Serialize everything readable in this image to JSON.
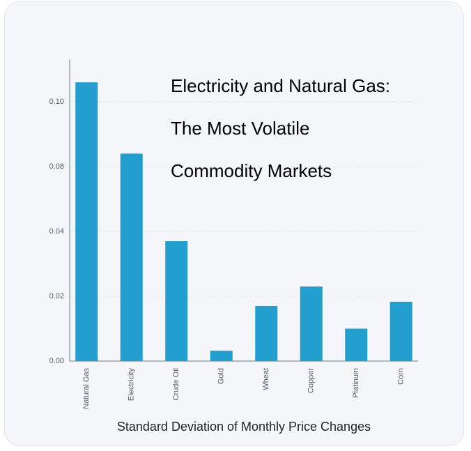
{
  "chart_data": {
    "type": "bar",
    "title": [
      "Electricity and Natural Gas:",
      "The Most Volatile",
      "Commodity Markets"
    ],
    "x_label": "Standard Deviation of Monthly Price Changes",
    "categories": [
      "Natural Gas",
      "Electricity",
      "Crude Oil",
      "Gold",
      "Wheat",
      "Copper",
      "Platinum",
      "Corn"
    ],
    "values": [
      0.106,
      0.084,
      0.037,
      0.0032,
      0.017,
      0.023,
      0.01,
      0.0183
    ],
    "color": "#229fcf",
    "ylim": [
      0,
      0.113
    ],
    "yticks": [
      {
        "value": 0,
        "label": "0.00"
      },
      {
        "value": 0.02,
        "label": "0.02"
      },
      {
        "value": 0.04,
        "label": "0.04"
      },
      {
        "value": 0.08,
        "label": "0.08"
      },
      {
        "value": 0.1,
        "label": "0.10"
      }
    ],
    "grid": true
  }
}
